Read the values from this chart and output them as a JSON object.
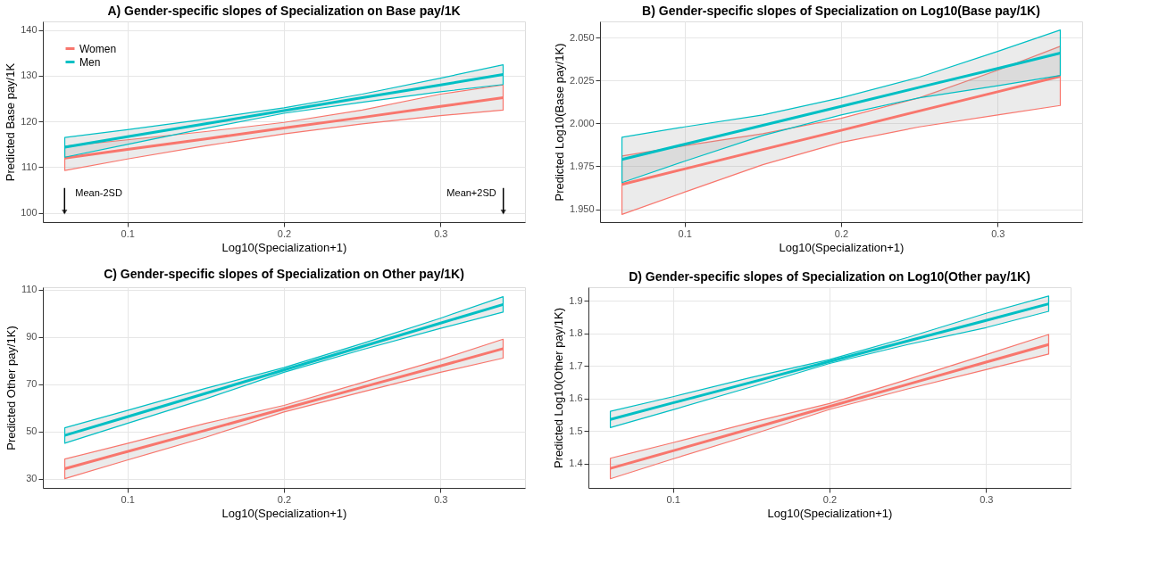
{
  "chart_data": [
    {
      "type": "line",
      "title": "A) Gender-specific slopes of Specialization on Base pay/1K",
      "xlabel": "Log10(Specialization+1)",
      "ylabel": "Predicted Base pay/1K",
      "xlim": [
        0.046,
        0.354
      ],
      "xticks": [
        0.1,
        0.2,
        0.3
      ],
      "ylim": [
        98,
        141.9
      ],
      "yticks": [
        100,
        110,
        120,
        130,
        140
      ],
      "grid": true,
      "legend": "top left",
      "x": [
        0.06,
        0.1,
        0.15,
        0.2,
        0.25,
        0.3,
        0.34
      ],
      "series": [
        {
          "name": "Women",
          "color": "#f8766d",
          "values": [
            112,
            113.9,
            116.2,
            118.6,
            120.9,
            123.3,
            125.2
          ],
          "lower": [
            109.3,
            111.8,
            114.7,
            117.3,
            119.5,
            121.3,
            122.5
          ],
          "upper": [
            114.6,
            116,
            117.8,
            119.8,
            122.5,
            126,
            128
          ]
        },
        {
          "name": "Men",
          "color": "#00bfc4",
          "values": [
            114.4,
            116.7,
            119.5,
            122.4,
            125.2,
            128,
            130.3
          ],
          "lower": [
            112.2,
            115,
            118.5,
            121.8,
            124.2,
            126.5,
            128.1
          ],
          "upper": [
            116.5,
            118.2,
            120.5,
            123,
            126,
            129.5,
            132.4
          ]
        }
      ],
      "annotations": [
        "Mean-2SD",
        "Mean+2SD"
      ]
    },
    {
      "type": "line",
      "title": "B) Gender-specific slopes of Specialization on Log10(Base pay/1K)",
      "xlabel": "Log10(Specialization+1)",
      "ylabel": "Predicted Log10(Base pay/1K)",
      "xlim": [
        0.046,
        0.354
      ],
      "xticks": [
        0.1,
        0.2,
        0.3
      ],
      "ylim": [
        1.9425,
        2.0595
      ],
      "yticks": [
        {
          "value": 1.95,
          "label": "1.950"
        },
        {
          "value": 1.975,
          "label": "1.975"
        },
        {
          "value": 2.0,
          "label": "2.000"
        },
        {
          "value": 2.025,
          "label": "2.025"
        },
        {
          "value": 2.05,
          "label": "2.050"
        }
      ],
      "grid": true,
      "x": [
        0.06,
        0.1,
        0.15,
        0.2,
        0.25,
        0.3,
        0.34
      ],
      "series": [
        {
          "name": "Women",
          "color": "#f8766d",
          "values": [
            1.9645,
            1.9735,
            1.9848,
            1.996,
            2.0073,
            2.0185,
            2.0275
          ],
          "lower": [
            1.947,
            1.96,
            1.976,
            1.989,
            1.998,
            2.005,
            2.0105
          ],
          "upper": [
            1.981,
            1.987,
            1.994,
            2.003,
            2.015,
            2.031,
            2.045
          ]
        },
        {
          "name": "Men",
          "color": "#00bfc4",
          "values": [
            1.979,
            1.9879,
            1.9989,
            2.01,
            2.0211,
            2.0321,
            2.041
          ],
          "lower": [
            1.9655,
            1.978,
            1.993,
            2.005,
            2.015,
            2.022,
            2.028
          ],
          "upper": [
            1.992,
            1.998,
            2.005,
            2.015,
            2.027,
            2.042,
            2.0545
          ]
        }
      ]
    },
    {
      "type": "line",
      "title": "C) Gender-specific slopes of Specialization on Other pay/1K)",
      "xlabel": "Log10(Specialization+1)",
      "ylabel": "Predicted Other pay/1K)",
      "xlim": [
        0.046,
        0.354
      ],
      "xticks": [
        0.1,
        0.2,
        0.3
      ],
      "ylim": [
        26.1,
        111
      ],
      "yticks": [
        30,
        50,
        70,
        90,
        110
      ],
      "grid": true,
      "x": [
        0.06,
        0.1,
        0.15,
        0.2,
        0.25,
        0.3,
        0.34
      ],
      "series": [
        {
          "name": "Women",
          "color": "#f8766d",
          "values": [
            34.2,
            41.5,
            50.5,
            59.6,
            68.7,
            77.7,
            85
          ],
          "lower": [
            30,
            37.9,
            47.5,
            58.2,
            66.7,
            75,
            81
          ],
          "upper": [
            38.3,
            44.9,
            53.4,
            61,
            70.7,
            80.4,
            89
          ]
        },
        {
          "name": "Men",
          "color": "#00bfc4",
          "values": [
            48.3,
            56.2,
            66.1,
            76,
            85.9,
            95.8,
            103.7
          ],
          "lower": [
            45,
            53.4,
            63.8,
            75,
            84.6,
            93.6,
            100.5
          ],
          "upper": [
            51.5,
            58.9,
            68.2,
            77,
            87.2,
            97.9,
            107
          ]
        }
      ]
    },
    {
      "type": "line",
      "title": "D) Gender-specific slopes of Specialization on Log10(Other pay/1K)",
      "xlabel": "Log10(Specialization+1)",
      "ylabel": "Predicted Log10(Other pay/1K)",
      "xlim": [
        0.046,
        0.354
      ],
      "xticks": [
        0.1,
        0.2,
        0.3
      ],
      "ylim": [
        1.326,
        1.942
      ],
      "yticks": [
        1.4,
        1.5,
        1.6,
        1.7,
        1.8,
        1.9
      ],
      "grid": true,
      "x": [
        0.06,
        0.1,
        0.15,
        0.2,
        0.25,
        0.3,
        0.34
      ],
      "series": [
        {
          "name": "Women",
          "color": "#f8766d",
          "values": [
            1.386,
            1.44,
            1.508,
            1.576,
            1.644,
            1.712,
            1.766
          ],
          "lower": [
            1.354,
            1.415,
            1.489,
            1.567,
            1.63,
            1.689,
            1.737
          ],
          "upper": [
            1.417,
            1.465,
            1.527,
            1.585,
            1.659,
            1.735,
            1.797
          ]
        },
        {
          "name": "Men",
          "color": "#00bfc4",
          "values": [
            1.536,
            1.587,
            1.65,
            1.714,
            1.777,
            1.84,
            1.891
          ],
          "lower": [
            1.511,
            1.566,
            1.636,
            1.708,
            1.766,
            1.818,
            1.868
          ],
          "upper": [
            1.561,
            1.606,
            1.665,
            1.72,
            1.788,
            1.862,
            1.915
          ]
        }
      ]
    }
  ]
}
